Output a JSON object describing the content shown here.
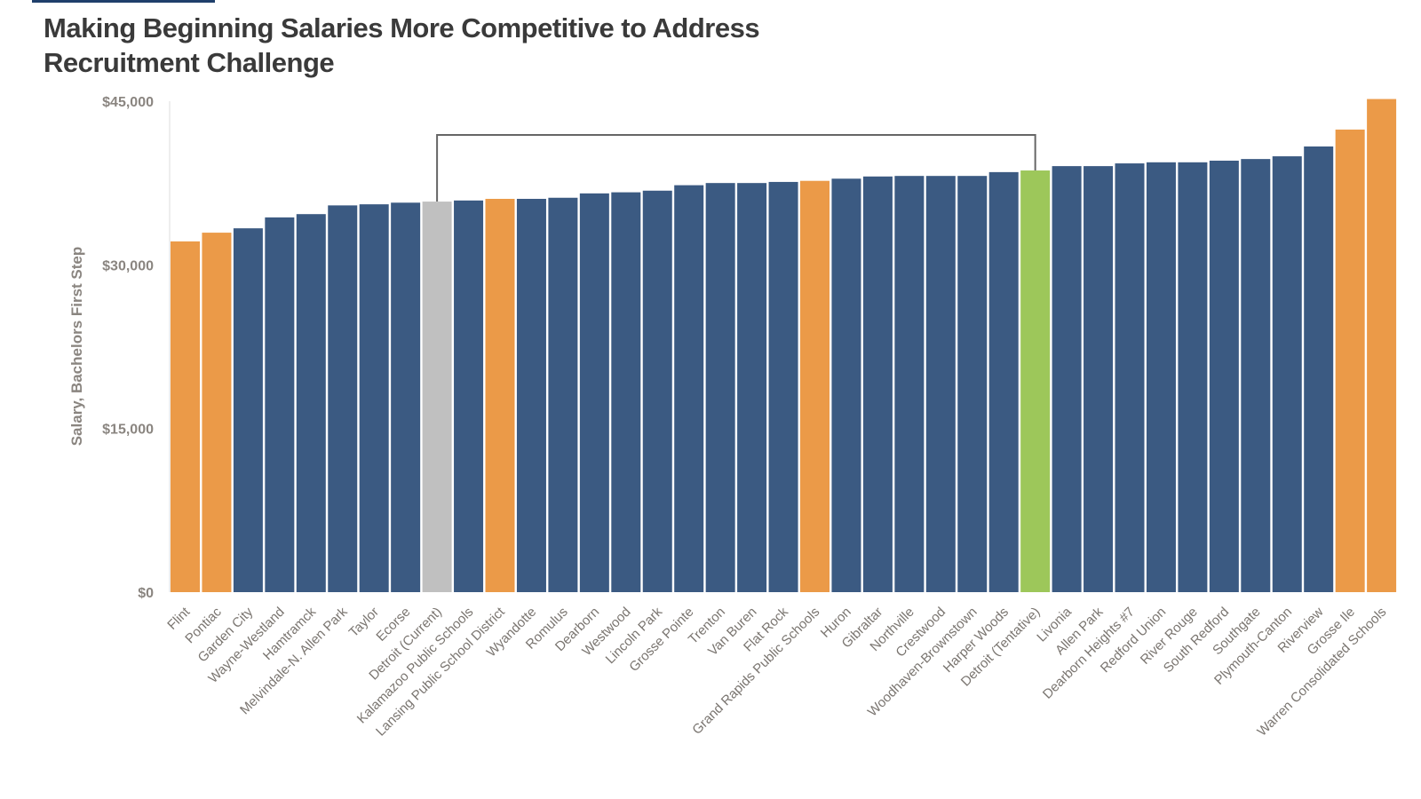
{
  "chart_data": {
    "type": "bar",
    "title_line1": "Making Beginning Salaries More Competitive to Address",
    "title_line2": "Recruitment Challenge",
    "xlabel": "",
    "ylabel": "Salary, Bachelors First Step",
    "ylim": [
      0,
      45000
    ],
    "yticks": [
      0,
      15000,
      30000,
      45000
    ],
    "ytick_labels": [
      "$0",
      "$15,000",
      "$30,000",
      "$45,000"
    ],
    "grid": false,
    "colors": {
      "default": "#3b5a82",
      "highlight": "#eb9a48",
      "current": "#c0c0c0",
      "tentative": "#9dc75a",
      "bracket": "#666666"
    },
    "categories": [
      "Flint",
      "Pontiac",
      "Garden City",
      "Wayne-Westland",
      "Hamtramck",
      "Melvindale-N. Allen Park",
      "Taylor",
      "Ecorse",
      "Detroit (Current)",
      "Kalamazoo Public Schools",
      "Lansing Public School District",
      "Wyandotte",
      "Romulus",
      "Dearborn",
      "Westwood",
      "Lincoln Park",
      "Grosse Pointe",
      "Trenton",
      "Van Buren",
      "Flat Rock",
      "Grand Rapids Public Schools",
      "Huron",
      "Gibraltar",
      "Northville",
      "Crestwood",
      "Woodhaven-Brownstown",
      "Harper Woods",
      "Detroit (Tentative)",
      "Livonia",
      "Allen Park",
      "Dearborn Heights #7",
      "Redford Union",
      "River Rouge",
      "South Redford",
      "Southgate",
      "Plymouth-Canton",
      "Riverview",
      "Grosse Ile",
      "Warren Consolidated Schools"
    ],
    "values": [
      32150,
      32950,
      33350,
      34350,
      34650,
      35450,
      35550,
      35700,
      35800,
      35900,
      36050,
      36050,
      36150,
      36550,
      36650,
      36800,
      37300,
      37500,
      37500,
      37600,
      37700,
      37900,
      38100,
      38150,
      38150,
      38150,
      38500,
      38650,
      39050,
      39050,
      39300,
      39400,
      39400,
      39550,
      39700,
      39950,
      40850,
      42400,
      45200
    ],
    "bar_color_keys": [
      "highlight",
      "highlight",
      "default",
      "default",
      "default",
      "default",
      "default",
      "default",
      "current",
      "default",
      "highlight",
      "default",
      "default",
      "default",
      "default",
      "default",
      "default",
      "default",
      "default",
      "default",
      "highlight",
      "default",
      "default",
      "default",
      "default",
      "default",
      "default",
      "tentative",
      "default",
      "default",
      "default",
      "default",
      "default",
      "default",
      "default",
      "default",
      "default",
      "highlight",
      "highlight"
    ],
    "bracket_between": [
      "Detroit (Current)",
      "Detroit (Tentative)"
    ]
  }
}
